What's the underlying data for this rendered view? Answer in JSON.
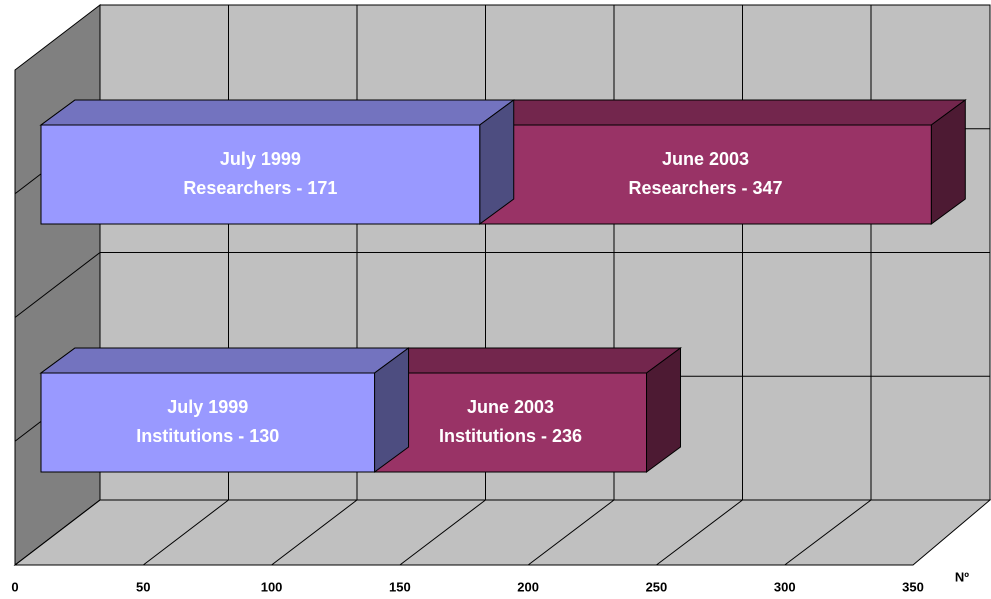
{
  "chart_data": {
    "type": "bar3d",
    "series": [
      {
        "name": "July 1999",
        "color": "#9999ff",
        "values": [
          171,
          130
        ],
        "value_labels": [
          "Researchers - 171",
          "Institutions - 130"
        ]
      },
      {
        "name": "June 2003",
        "color": "#993366",
        "values": [
          347,
          236
        ],
        "value_labels": [
          "Researchers - 347",
          "Institutions - 236"
        ]
      }
    ],
    "xlim": [
      0,
      350
    ],
    "xticks": [
      0,
      50,
      100,
      150,
      200,
      250,
      300,
      350
    ],
    "x_label": "Nº",
    "grid": true
  }
}
